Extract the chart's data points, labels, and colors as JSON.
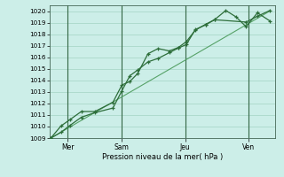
{
  "title": "",
  "xlabel": "Pression niveau de la mer( hPa )",
  "ylabel": "",
  "bg_color": "#cceee8",
  "grid_color": "#99ccbb",
  "line_color_dark": "#2d6e3a",
  "line_color_trend": "#4a9a5a",
  "vline_color": "#336644",
  "ylim": [
    1009.0,
    1020.5
  ],
  "xlim": [
    0.0,
    10.0
  ],
  "yticks": [
    1009,
    1010,
    1011,
    1012,
    1013,
    1014,
    1015,
    1016,
    1017,
    1018,
    1019,
    1020
  ],
  "xtick_positions": [
    0.8,
    3.2,
    6.0,
    8.8
  ],
  "xtick_labels": [
    "Mer",
    "Sam",
    "Jeu",
    "Ven"
  ],
  "vline_positions": [
    0.8,
    3.2,
    6.0,
    8.8
  ],
  "series1_x": [
    0.05,
    0.5,
    0.9,
    1.4,
    2.0,
    2.8,
    3.2,
    3.55,
    3.9,
    4.35,
    4.8,
    5.3,
    5.7,
    6.05,
    6.45,
    6.9,
    7.3,
    7.8,
    8.25,
    8.7,
    9.2,
    9.75
  ],
  "series1_y": [
    1009.0,
    1009.5,
    1010.1,
    1010.8,
    1011.2,
    1011.6,
    1013.1,
    1014.4,
    1014.9,
    1015.6,
    1015.9,
    1016.4,
    1016.8,
    1017.1,
    1018.4,
    1018.8,
    1019.25,
    1020.05,
    1019.5,
    1018.65,
    1019.85,
    1019.15
  ],
  "series2_x": [
    0.05,
    0.5,
    0.9,
    1.4,
    2.0,
    2.8,
    3.2,
    3.55,
    3.9,
    4.35,
    4.8,
    5.3,
    5.7,
    6.05,
    6.45,
    6.9,
    7.3,
    8.7,
    9.2,
    9.75
  ],
  "series2_y": [
    1009.0,
    1010.05,
    1010.6,
    1011.3,
    1011.3,
    1012.1,
    1013.6,
    1013.9,
    1014.6,
    1016.3,
    1016.75,
    1016.55,
    1016.85,
    1017.35,
    1018.35,
    1018.85,
    1019.25,
    1019.05,
    1019.55,
    1020.05
  ],
  "trend_x": [
    0.05,
    9.75
  ],
  "trend_y": [
    1009.0,
    1020.0
  ]
}
